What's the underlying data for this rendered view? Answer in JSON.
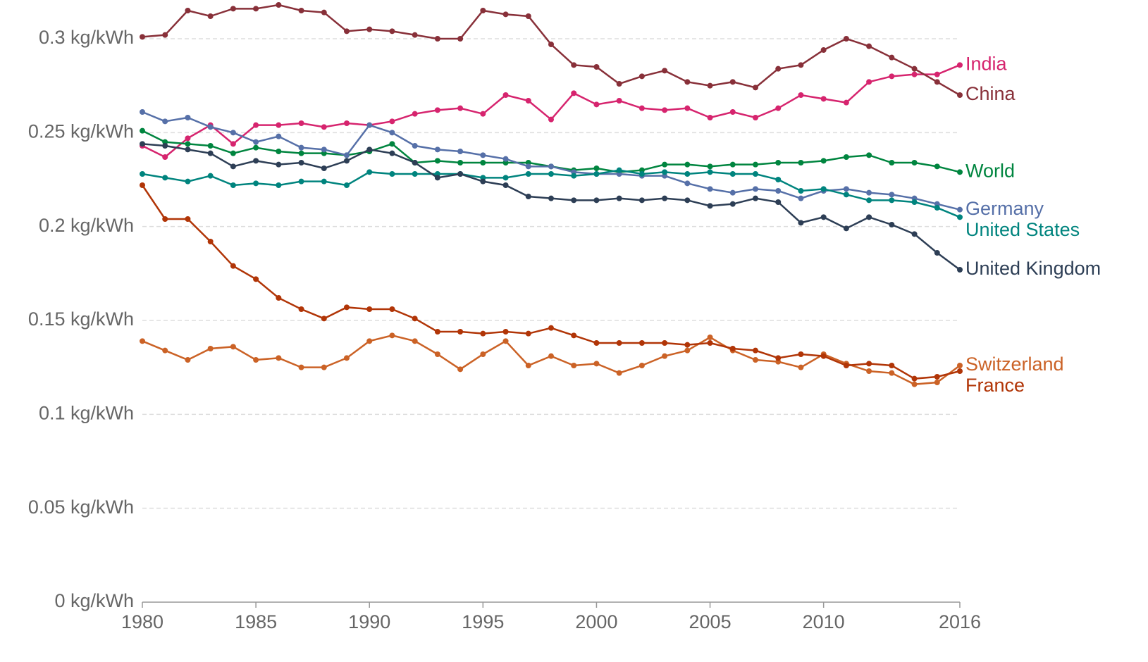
{
  "chart_data": {
    "type": "line",
    "x": [
      1980,
      1981,
      1982,
      1983,
      1984,
      1985,
      1986,
      1987,
      1988,
      1989,
      1990,
      1991,
      1992,
      1993,
      1994,
      1995,
      1996,
      1997,
      1998,
      1999,
      2000,
      2001,
      2002,
      2003,
      2004,
      2005,
      2006,
      2007,
      2008,
      2009,
      2010,
      2011,
      2012,
      2013,
      2014,
      2015,
      2016
    ],
    "xlim": [
      1980,
      2016
    ],
    "xticks": [
      1980,
      1985,
      1990,
      1995,
      2000,
      2005,
      2010,
      2016
    ],
    "ylim": [
      0,
      0.3
    ],
    "yticks": [
      {
        "value": 0,
        "label": "0 kg/kWh"
      },
      {
        "value": 0.05,
        "label": "0.05 kg/kWh"
      },
      {
        "value": 0.1,
        "label": "0.1 kg/kWh"
      },
      {
        "value": 0.15,
        "label": "0.15 kg/kWh"
      },
      {
        "value": 0.2,
        "label": "0.2 kg/kWh"
      },
      {
        "value": 0.25,
        "label": "0.25 kg/kWh"
      },
      {
        "value": 0.3,
        "label": "0.3 kg/kWh"
      }
    ],
    "grid": true,
    "series": [
      {
        "name": "India",
        "color": "#d6246e",
        "values": [
          0.243,
          0.237,
          0.247,
          0.254,
          0.244,
          0.254,
          0.254,
          0.255,
          0.253,
          0.255,
          0.254,
          0.256,
          0.26,
          0.262,
          0.263,
          0.26,
          0.27,
          0.267,
          0.257,
          0.271,
          0.265,
          0.267,
          0.263,
          0.262,
          0.263,
          0.258,
          0.261,
          0.258,
          0.263,
          0.27,
          0.268,
          0.266,
          0.277,
          0.28,
          0.281,
          0.281,
          0.286
        ]
      },
      {
        "name": "China",
        "color": "#883039",
        "values": [
          0.301,
          0.302,
          0.315,
          0.312,
          0.316,
          0.316,
          0.318,
          0.315,
          0.314,
          0.304,
          0.305,
          0.304,
          0.302,
          0.3,
          0.3,
          0.315,
          0.313,
          0.312,
          0.297,
          0.286,
          0.285,
          0.276,
          0.28,
          0.283,
          0.277,
          0.275,
          0.277,
          0.274,
          0.284,
          0.286,
          0.294,
          0.3,
          0.296,
          0.29,
          0.284,
          0.277,
          0.27
        ]
      },
      {
        "name": "World",
        "color": "#00853f",
        "values": [
          0.251,
          0.245,
          0.244,
          0.243,
          0.239,
          0.242,
          0.24,
          0.239,
          0.239,
          0.238,
          0.24,
          0.244,
          0.234,
          0.235,
          0.234,
          0.234,
          0.234,
          0.234,
          0.232,
          0.23,
          0.231,
          0.229,
          0.23,
          0.233,
          0.233,
          0.232,
          0.233,
          0.233,
          0.234,
          0.234,
          0.235,
          0.237,
          0.238,
          0.234,
          0.234,
          0.232,
          0.229
        ]
      },
      {
        "name": "Germany",
        "color": "#5670a8",
        "values": [
          0.261,
          0.256,
          0.258,
          0.253,
          0.25,
          0.245,
          0.248,
          0.242,
          0.241,
          0.238,
          0.254,
          0.25,
          0.243,
          0.241,
          0.24,
          0.238,
          0.236,
          0.232,
          0.232,
          0.229,
          0.228,
          0.228,
          0.227,
          0.227,
          0.223,
          0.22,
          0.218,
          0.22,
          0.219,
          0.215,
          0.219,
          0.22,
          0.218,
          0.217,
          0.215,
          0.212,
          0.209
        ]
      },
      {
        "name": "United States",
        "color": "#00847e",
        "values": [
          0.228,
          0.226,
          0.224,
          0.227,
          0.222,
          0.223,
          0.222,
          0.224,
          0.224,
          0.222,
          0.229,
          0.228,
          0.228,
          0.228,
          0.228,
          0.226,
          0.226,
          0.228,
          0.228,
          0.227,
          0.228,
          0.23,
          0.228,
          0.229,
          0.228,
          0.229,
          0.228,
          0.228,
          0.225,
          0.219,
          0.22,
          0.217,
          0.214,
          0.214,
          0.213,
          0.21,
          0.205
        ]
      },
      {
        "name": "United Kingdom",
        "color": "#2d3e55",
        "values": [
          0.244,
          0.243,
          0.241,
          0.239,
          0.232,
          0.235,
          0.233,
          0.234,
          0.231,
          0.235,
          0.241,
          0.239,
          0.234,
          0.226,
          0.228,
          0.224,
          0.222,
          0.216,
          0.215,
          0.214,
          0.214,
          0.215,
          0.214,
          0.215,
          0.214,
          0.211,
          0.212,
          0.215,
          0.213,
          0.202,
          0.205,
          0.199,
          0.205,
          0.201,
          0.196,
          0.186,
          0.177
        ]
      },
      {
        "name": "Switzerland",
        "color": "#cb6226",
        "values": [
          0.139,
          0.134,
          0.129,
          0.135,
          0.136,
          0.129,
          0.13,
          0.125,
          0.125,
          0.13,
          0.139,
          0.142,
          0.139,
          0.132,
          0.124,
          0.132,
          0.139,
          0.126,
          0.131,
          0.126,
          0.127,
          0.122,
          0.126,
          0.131,
          0.134,
          0.141,
          0.134,
          0.129,
          0.128,
          0.125,
          0.132,
          0.127,
          0.123,
          0.122,
          0.116,
          0.117,
          0.126
        ]
      },
      {
        "name": "France",
        "color": "#b13507",
        "values": [
          0.222,
          0.204,
          0.204,
          0.192,
          0.179,
          0.172,
          0.162,
          0.156,
          0.151,
          0.157,
          0.156,
          0.156,
          0.151,
          0.144,
          0.144,
          0.143,
          0.144,
          0.143,
          0.146,
          0.142,
          0.138,
          0.138,
          0.138,
          0.138,
          0.137,
          0.138,
          0.135,
          0.134,
          0.13,
          0.132,
          0.131,
          0.126,
          0.127,
          0.126,
          0.119,
          0.12,
          0.123
        ]
      }
    ]
  }
}
